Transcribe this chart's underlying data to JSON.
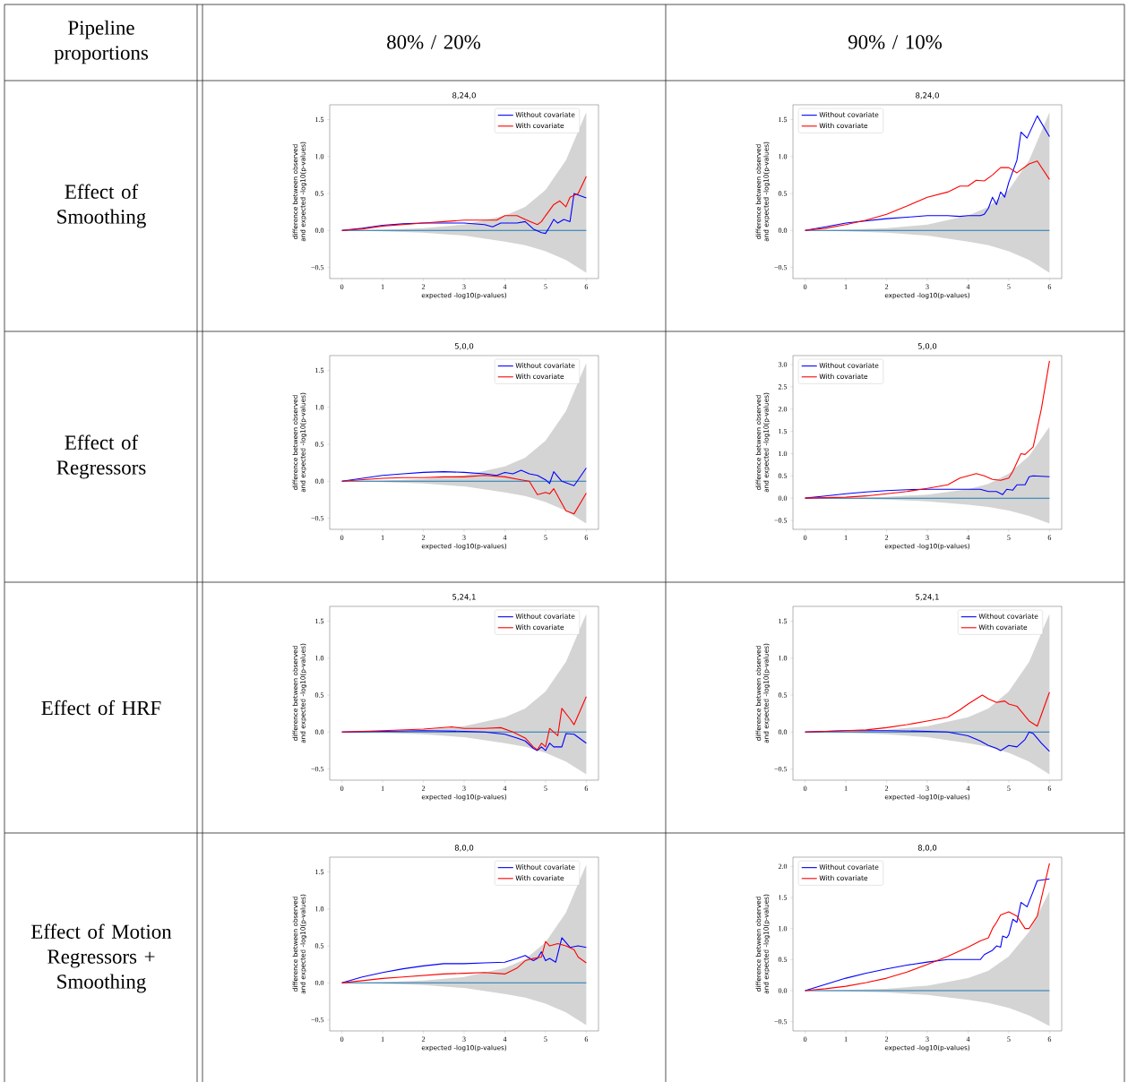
{
  "chart_data": [
    {
      "type": "other",
      "annotations": [
        "Pipeline proportions",
        "80% / 20%",
        "90% / 10%",
        "Effect of Smoothing",
        "Effect of Regressors",
        "Effect of HRF",
        "Effect of Motion Regressors + Smoothing"
      ]
    },
    {
      "type": "line",
      "title": "8,24,0",
      "xlabel": "expected -log10(p-values)",
      "ylabel": "difference between observed and expected -log10(p-values)",
      "xlim": [
        -0.3,
        6.3
      ],
      "ylim": [
        -0.65,
        1.7
      ],
      "xticks": [
        0,
        1,
        2,
        3,
        4,
        5,
        6
      ],
      "yticks": [
        {
          "value": -0.5,
          "label": "−0.5"
        },
        {
          "value": 0,
          "label": "0.0"
        },
        0.5,
        {
          "value": 1,
          "label": "1.0"
        },
        1.5
      ],
      "legend": "top right",
      "series": [
        {
          "color": "#1f77b4",
          "x": [
            0,
            1,
            2,
            3,
            4,
            4.5,
            5,
            5.5,
            6
          ],
          "values": [
            0,
            0,
            0,
            0,
            0,
            0,
            0,
            0,
            0
          ],
          "lower": [
            0,
            -0.01,
            -0.03,
            -0.07,
            -0.15,
            -0.2,
            -0.28,
            -0.4,
            -0.57
          ],
          "upper": [
            0,
            0.01,
            0.03,
            0.08,
            0.2,
            0.32,
            0.55,
            0.95,
            1.6
          ]
        },
        {
          "name": "Without covariate",
          "color": "#0000ff",
          "x": [
            0,
            0.5,
            1,
            1.5,
            2,
            2.5,
            3,
            3.5,
            3.7,
            3.9,
            4.3,
            4.5,
            4.7,
            4.9,
            5.0,
            5.1,
            5.2,
            5.3,
            5.45,
            5.6,
            5.7,
            6
          ],
          "values": [
            0,
            0.03,
            0.07,
            0.09,
            0.1,
            0.1,
            0.1,
            0.08,
            0.05,
            0.1,
            0.1,
            0.12,
            0.02,
            -0.03,
            -0.04,
            0.05,
            0.15,
            0.1,
            0.15,
            0.12,
            0.5,
            0.44
          ]
        },
        {
          "name": "With covariate",
          "color": "#ff0000",
          "x": [
            0,
            0.5,
            1,
            1.5,
            2,
            2.5,
            3,
            3.5,
            3.8,
            4,
            4.3,
            4.5,
            4.8,
            4.9,
            5,
            5.2,
            5.35,
            5.5,
            5.6,
            5.8,
            6
          ],
          "values": [
            0,
            0.02,
            0.06,
            0.08,
            0.1,
            0.12,
            0.14,
            0.14,
            0.14,
            0.2,
            0.2,
            0.15,
            0.08,
            0.12,
            0.2,
            0.35,
            0.4,
            0.32,
            0.45,
            0.5,
            0.73
          ]
        }
      ]
    },
    {
      "type": "line",
      "title": "8,24,0",
      "xlabel": "expected -log10(p-values)",
      "ylabel": "difference between observed and expected -log10(p-values)",
      "xlim": [
        -0.3,
        6.3
      ],
      "ylim": [
        -0.65,
        1.7
      ],
      "xticks": [
        0,
        1,
        2,
        3,
        4,
        5,
        6
      ],
      "yticks": [
        {
          "value": -0.5,
          "label": "−0.5"
        },
        {
          "value": 0,
          "label": "0.0"
        },
        0.5,
        {
          "value": 1,
          "label": "1.0"
        },
        1.5
      ],
      "legend": "top left",
      "series": [
        {
          "color": "#1f77b4",
          "x": [
            0,
            1,
            2,
            3,
            4,
            4.5,
            5,
            5.5,
            6
          ],
          "values": [
            0,
            0,
            0,
            0,
            0,
            0,
            0,
            0,
            0
          ],
          "lower": [
            0,
            -0.01,
            -0.03,
            -0.07,
            -0.15,
            -0.2,
            -0.28,
            -0.4,
            -0.57
          ],
          "upper": [
            0,
            0.01,
            0.03,
            0.08,
            0.2,
            0.32,
            0.55,
            0.95,
            1.6
          ]
        },
        {
          "name": "Without covariate",
          "color": "#0000ff",
          "x": [
            0,
            0.5,
            1,
            1.5,
            2,
            2.5,
            3,
            3.5,
            3.8,
            4,
            4.3,
            4.4,
            4.5,
            4.6,
            4.7,
            4.8,
            4.9,
            5,
            5.2,
            5.3,
            5.45,
            5.7,
            6
          ],
          "values": [
            0,
            0.05,
            0.1,
            0.13,
            0.16,
            0.18,
            0.2,
            0.2,
            0.19,
            0.2,
            0.2,
            0.22,
            0.3,
            0.45,
            0.35,
            0.52,
            0.45,
            0.65,
            0.95,
            1.33,
            1.25,
            1.55,
            1.27
          ]
        },
        {
          "name": "With covariate",
          "color": "#ff0000",
          "x": [
            0,
            0.5,
            1,
            1.5,
            2,
            2.5,
            3,
            3.5,
            3.8,
            4,
            4.2,
            4.4,
            4.6,
            4.8,
            5,
            5.2,
            5.5,
            5.7,
            6
          ],
          "values": [
            0,
            0.03,
            0.08,
            0.14,
            0.22,
            0.33,
            0.45,
            0.52,
            0.6,
            0.6,
            0.68,
            0.67,
            0.75,
            0.85,
            0.85,
            0.78,
            0.9,
            0.94,
            0.69
          ]
        }
      ]
    },
    {
      "type": "line",
      "title": "5,0,0",
      "xlabel": "expected -log10(p-values)",
      "ylabel": "difference between observed and expected -log10(p-values)",
      "xlim": [
        -0.3,
        6.3
      ],
      "ylim": [
        -0.65,
        1.7
      ],
      "xticks": [
        0,
        1,
        2,
        3,
        4,
        5,
        6
      ],
      "yticks": [
        {
          "value": -0.5,
          "label": "−0.5"
        },
        {
          "value": 0,
          "label": "0.0"
        },
        0.5,
        {
          "value": 1,
          "label": "1.0"
        },
        1.5
      ],
      "legend": "top right",
      "series": [
        {
          "color": "#1f77b4",
          "x": [
            0,
            1,
            2,
            3,
            4,
            4.5,
            5,
            5.5,
            6
          ],
          "values": [
            0,
            0,
            0,
            0,
            0,
            0,
            0,
            0,
            0
          ],
          "lower": [
            0,
            -0.01,
            -0.03,
            -0.07,
            -0.15,
            -0.2,
            -0.28,
            -0.4,
            -0.57
          ],
          "upper": [
            0,
            0.01,
            0.03,
            0.08,
            0.2,
            0.32,
            0.55,
            0.95,
            1.6
          ]
        },
        {
          "name": "Without covariate",
          "color": "#0000ff",
          "x": [
            0,
            0.5,
            1,
            1.5,
            2,
            2.5,
            3,
            3.5,
            3.8,
            4,
            4.2,
            4.4,
            4.6,
            4.8,
            5,
            5.1,
            5.2,
            5.4,
            5.7,
            6
          ],
          "values": [
            0,
            0.04,
            0.08,
            0.1,
            0.12,
            0.13,
            0.12,
            0.1,
            0.08,
            0.12,
            0.1,
            0.15,
            0.1,
            0.08,
            0.02,
            -0.03,
            0.13,
            0,
            -0.06,
            0.18
          ]
        },
        {
          "name": "With covariate",
          "color": "#ff0000",
          "x": [
            0,
            0.5,
            1,
            1.5,
            2,
            2.5,
            3,
            3.5,
            4,
            4.4,
            4.6,
            4.8,
            5,
            5.1,
            5.2,
            5.5,
            5.7,
            6
          ],
          "values": [
            0,
            0.02,
            0.04,
            0.05,
            0.05,
            0.06,
            0.06,
            0.08,
            0.06,
            0.02,
            0,
            -0.18,
            -0.15,
            -0.17,
            -0.1,
            -0.4,
            -0.44,
            -0.16
          ]
        }
      ]
    },
    {
      "type": "line",
      "title": "5,0,0",
      "xlabel": "expected -log10(p-values)",
      "ylabel": "difference between observed and expected -log10(p-values)",
      "xlim": [
        -0.3,
        6.3
      ],
      "ylim": [
        -0.7,
        3.2
      ],
      "xticks": [
        0,
        1,
        2,
        3,
        4,
        5,
        6
      ],
      "yticks": [
        {
          "value": -0.5,
          "label": "−0.5"
        },
        {
          "value": 0,
          "label": "0.0"
        },
        0.5,
        {
          "value": 1,
          "label": "1.0"
        },
        1.5,
        {
          "value": 2,
          "label": "2.0"
        },
        2.5,
        {
          "value": 3,
          "label": "3.0"
        }
      ],
      "legend": "top left",
      "series": [
        {
          "color": "#1f77b4",
          "x": [
            0,
            1,
            2,
            3,
            4,
            4.5,
            5,
            5.5,
            6
          ],
          "values": [
            0,
            0,
            0,
            0,
            0,
            0,
            0,
            0,
            0
          ],
          "lower": [
            0,
            -0.01,
            -0.03,
            -0.07,
            -0.15,
            -0.2,
            -0.28,
            -0.4,
            -0.57
          ],
          "upper": [
            0,
            0.01,
            0.03,
            0.08,
            0.2,
            0.32,
            0.55,
            0.95,
            1.6
          ]
        },
        {
          "name": "Without covariate",
          "color": "#0000ff",
          "x": [
            0,
            0.5,
            1,
            1.5,
            2,
            2.5,
            3,
            3.5,
            4,
            4.3,
            4.5,
            4.7,
            4.85,
            4.95,
            5.1,
            5.2,
            5.4,
            5.5,
            5.6,
            6
          ],
          "values": [
            0,
            0.05,
            0.1,
            0.14,
            0.17,
            0.19,
            0.2,
            0.2,
            0.2,
            0.2,
            0.15,
            0.15,
            0.08,
            0.2,
            0.18,
            0.3,
            0.3,
            0.48,
            0.5,
            0.48
          ]
        },
        {
          "name": "With covariate",
          "color": "#ff0000",
          "x": [
            0,
            1,
            1.5,
            2,
            2.5,
            3,
            3.5,
            3.8,
            4,
            4.2,
            4.4,
            4.6,
            4.8,
            5,
            5.1,
            5.3,
            5.4,
            5.6,
            5.8,
            6
          ],
          "values": [
            0,
            0.02,
            0.05,
            0.1,
            0.15,
            0.22,
            0.3,
            0.45,
            0.5,
            0.55,
            0.5,
            0.42,
            0.4,
            0.45,
            0.6,
            1.0,
            0.98,
            1.15,
            2.0,
            3.08
          ]
        }
      ]
    },
    {
      "type": "line",
      "title": "5,24,1",
      "xlabel": "expected -log10(p-values)",
      "ylabel": "difference between observed and expected -log10(p-values)",
      "xlim": [
        -0.3,
        6.3
      ],
      "ylim": [
        -0.65,
        1.7
      ],
      "xticks": [
        0,
        1,
        2,
        3,
        4,
        5,
        6
      ],
      "yticks": [
        {
          "value": -0.5,
          "label": "−0.5"
        },
        {
          "value": 0,
          "label": "0.0"
        },
        0.5,
        {
          "value": 1,
          "label": "1.0"
        },
        1.5
      ],
      "legend": "top right",
      "series": [
        {
          "color": "#1f77b4",
          "x": [
            0,
            1,
            2,
            3,
            4,
            4.5,
            5,
            5.5,
            6
          ],
          "values": [
            0,
            0,
            0,
            0,
            0,
            0,
            0,
            0,
            0
          ],
          "lower": [
            0,
            -0.01,
            -0.03,
            -0.07,
            -0.15,
            -0.2,
            -0.28,
            -0.4,
            -0.57
          ],
          "upper": [
            0,
            0.01,
            0.03,
            0.08,
            0.2,
            0.32,
            0.55,
            0.95,
            1.6
          ]
        },
        {
          "name": "Without covariate",
          "color": "#0000ff",
          "x": [
            0,
            1,
            2,
            3,
            3.5,
            4,
            4.3,
            4.5,
            4.7,
            4.8,
            4.9,
            5,
            5.1,
            5.2,
            5.4,
            5.5,
            5.7,
            6
          ],
          "values": [
            0,
            0.01,
            0.02,
            0.01,
            0,
            -0.03,
            -0.08,
            -0.12,
            -0.22,
            -0.25,
            -0.2,
            -0.25,
            -0.15,
            -0.2,
            -0.2,
            -0.02,
            -0.03,
            -0.15
          ]
        },
        {
          "name": "With covariate",
          "color": "#ff0000",
          "x": [
            0,
            1,
            2,
            2.7,
            3,
            3.5,
            3.9,
            4.2,
            4.5,
            4.7,
            4.8,
            4.9,
            5,
            5.1,
            5.2,
            5.3,
            5.4,
            5.6,
            5.7,
            6
          ],
          "values": [
            0,
            0.02,
            0.04,
            0.07,
            0.05,
            0.05,
            0.06,
            0,
            -0.08,
            -0.2,
            -0.24,
            -0.15,
            -0.2,
            0.05,
            0,
            -0.05,
            0.32,
            0.18,
            0.1,
            0.48
          ]
        }
      ]
    },
    {
      "type": "line",
      "title": "5,24,1",
      "xlabel": "expected -log10(p-values)",
      "ylabel": "difference between observed and expected -log10(p-values)",
      "xlim": [
        -0.3,
        6.3
      ],
      "ylim": [
        -0.65,
        1.7
      ],
      "xticks": [
        0,
        1,
        2,
        3,
        4,
        5,
        6
      ],
      "yticks": [
        {
          "value": -0.5,
          "label": "−0.5"
        },
        {
          "value": 0,
          "label": "0.0"
        },
        0.5,
        {
          "value": 1,
          "label": "1.0"
        },
        1.5
      ],
      "legend": "top right",
      "series": [
        {
          "color": "#1f77b4",
          "x": [
            0,
            1,
            2,
            3,
            4,
            4.5,
            5,
            5.5,
            6
          ],
          "values": [
            0,
            0,
            0,
            0,
            0,
            0,
            0,
            0,
            0
          ],
          "lower": [
            0,
            -0.01,
            -0.03,
            -0.07,
            -0.15,
            -0.2,
            -0.28,
            -0.4,
            -0.57
          ],
          "upper": [
            0,
            0.01,
            0.03,
            0.08,
            0.2,
            0.32,
            0.55,
            0.95,
            1.6
          ]
        },
        {
          "name": "Without covariate",
          "color": "#0000ff",
          "x": [
            0,
            1,
            2,
            3,
            3.5,
            4,
            4.3,
            4.5,
            4.7,
            4.8,
            5,
            5.2,
            5.4,
            5.5,
            5.6,
            5.8,
            6
          ],
          "values": [
            0,
            0.02,
            0.02,
            0.01,
            0,
            -0.05,
            -0.12,
            -0.18,
            -0.22,
            -0.25,
            -0.18,
            -0.2,
            -0.1,
            0,
            -0.02,
            -0.15,
            -0.26
          ]
        },
        {
          "name": "With covariate",
          "color": "#ff0000",
          "x": [
            0,
            1,
            1.5,
            2,
            2.5,
            3,
            3.5,
            3.8,
            4,
            4.2,
            4.35,
            4.5,
            4.7,
            4.9,
            5,
            5.2,
            5.5,
            5.7,
            6
          ],
          "values": [
            0,
            0.02,
            0.03,
            0.06,
            0.1,
            0.15,
            0.2,
            0.3,
            0.38,
            0.45,
            0.5,
            0.45,
            0.4,
            0.42,
            0.38,
            0.35,
            0.15,
            0.08,
            0.54
          ]
        }
      ]
    },
    {
      "type": "line",
      "title": "8,0,0",
      "xlabel": "expected -log10(p-values)",
      "ylabel": "difference between observed and expected -log10(p-values)",
      "xlim": [
        -0.3,
        6.3
      ],
      "ylim": [
        -0.65,
        1.7
      ],
      "xticks": [
        0,
        1,
        2,
        3,
        4,
        5,
        6
      ],
      "yticks": [
        {
          "value": -0.5,
          "label": "−0.5"
        },
        {
          "value": 0,
          "label": "0.0"
        },
        0.5,
        {
          "value": 1,
          "label": "1.0"
        },
        1.5
      ],
      "legend": "top right",
      "series": [
        {
          "color": "#1f77b4",
          "x": [
            0,
            1,
            2,
            3,
            4,
            4.5,
            5,
            5.5,
            6
          ],
          "values": [
            0,
            0,
            0,
            0,
            0,
            0,
            0,
            0,
            0
          ],
          "lower": [
            0,
            -0.01,
            -0.03,
            -0.07,
            -0.15,
            -0.2,
            -0.28,
            -0.4,
            -0.57
          ],
          "upper": [
            0,
            0.01,
            0.03,
            0.08,
            0.2,
            0.32,
            0.55,
            0.95,
            1.6
          ]
        },
        {
          "name": "Without covariate",
          "color": "#0000ff",
          "x": [
            0,
            0.5,
            1,
            1.5,
            2,
            2.5,
            3,
            3.5,
            4,
            4.3,
            4.5,
            4.7,
            4.8,
            4.9,
            5,
            5.1,
            5.25,
            5.4,
            5.6,
            5.8,
            6
          ],
          "values": [
            0,
            0.08,
            0.14,
            0.19,
            0.23,
            0.26,
            0.26,
            0.27,
            0.28,
            0.33,
            0.37,
            0.3,
            0.33,
            0.42,
            0.3,
            0.33,
            0.28,
            0.61,
            0.48,
            0.5,
            0.48
          ]
        },
        {
          "name": "With covariate",
          "color": "#ff0000",
          "x": [
            0,
            0.5,
            1,
            1.5,
            2,
            2.5,
            3,
            3.5,
            4,
            4.3,
            4.5,
            4.7,
            4.9,
            5,
            5.1,
            5.3,
            5.5,
            5.7,
            5.8,
            6
          ],
          "values": [
            0,
            0.03,
            0.06,
            0.08,
            0.1,
            0.12,
            0.13,
            0.14,
            0.12,
            0.2,
            0.3,
            0.33,
            0.35,
            0.56,
            0.5,
            0.53,
            0.5,
            0.45,
            0.35,
            0.27
          ]
        }
      ]
    },
    {
      "type": "line",
      "title": "8,0,0",
      "xlabel": "expected -log10(p-values)",
      "ylabel": "difference between observed and expected -log10(p-values)",
      "xlim": [
        -0.3,
        6.3
      ],
      "ylim": [
        -0.65,
        2.15
      ],
      "xticks": [
        0,
        1,
        2,
        3,
        4,
        5,
        6
      ],
      "yticks": [
        {
          "value": -0.5,
          "label": "−0.5"
        },
        {
          "value": 0,
          "label": "0.0"
        },
        0.5,
        {
          "value": 1,
          "label": "1.0"
        },
        1.5,
        {
          "value": 2,
          "label": "2.0"
        }
      ],
      "legend": "top left",
      "series": [
        {
          "color": "#1f77b4",
          "x": [
            0,
            1,
            2,
            3,
            4,
            4.5,
            5,
            5.5,
            6
          ],
          "values": [
            0,
            0,
            0,
            0,
            0,
            0,
            0,
            0,
            0
          ],
          "lower": [
            0,
            -0.01,
            -0.03,
            -0.07,
            -0.15,
            -0.2,
            -0.28,
            -0.4,
            -0.57
          ],
          "upper": [
            0,
            0.01,
            0.03,
            0.08,
            0.2,
            0.32,
            0.55,
            0.95,
            1.6
          ]
        },
        {
          "name": "Without covariate",
          "color": "#0000ff",
          "x": [
            0,
            0.5,
            1,
            1.5,
            2,
            2.5,
            3,
            3.5,
            4,
            4.3,
            4.4,
            4.6,
            4.7,
            4.8,
            4.85,
            4.95,
            5,
            5.1,
            5.2,
            5.3,
            5.45,
            5.6,
            5.7,
            6
          ],
          "values": [
            0,
            0.1,
            0.2,
            0.28,
            0.35,
            0.41,
            0.46,
            0.5,
            0.5,
            0.5,
            0.58,
            0.65,
            0.72,
            0.7,
            0.88,
            0.85,
            0.9,
            1.15,
            1.1,
            1.42,
            1.35,
            1.6,
            1.77,
            1.8
          ]
        },
        {
          "name": "With covariate",
          "color": "#ff0000",
          "x": [
            0,
            0.5,
            1,
            1.5,
            2,
            2.5,
            3,
            3.5,
            4,
            4.3,
            4.5,
            4.6,
            4.7,
            4.8,
            5,
            5.2,
            5.4,
            5.5,
            5.7,
            6
          ],
          "values": [
            0,
            0.03,
            0.07,
            0.13,
            0.2,
            0.3,
            0.42,
            0.55,
            0.7,
            0.8,
            0.85,
            1.0,
            1.1,
            1.22,
            1.27,
            1.2,
            1.0,
            1.0,
            1.2,
            2.05
          ]
        }
      ]
    }
  ]
}
